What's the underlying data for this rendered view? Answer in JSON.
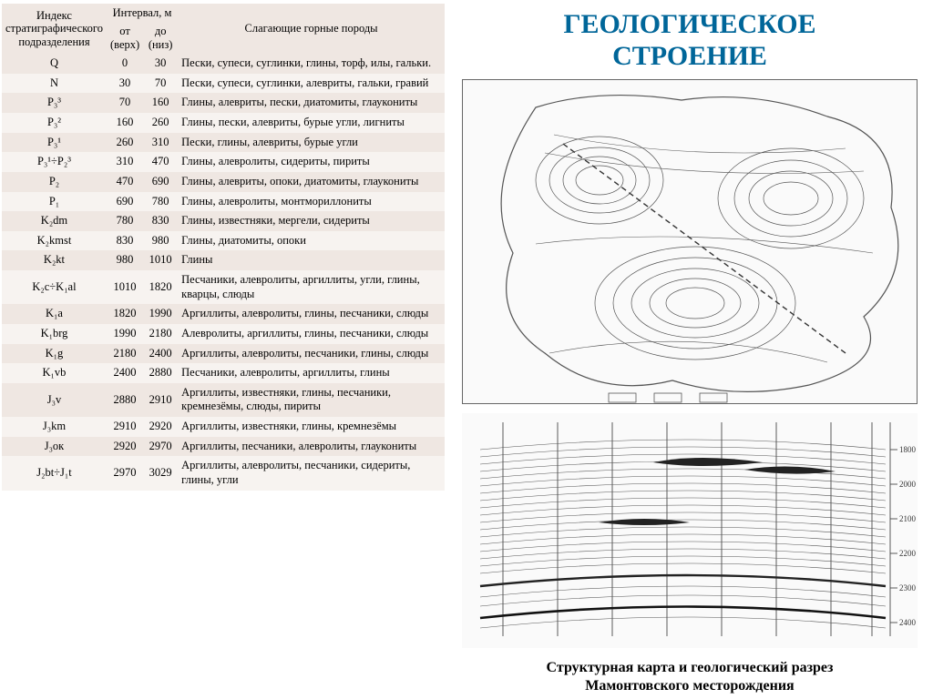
{
  "title_line1": "ГЕОЛОГИЧЕСКОЕ",
  "title_line2": "СТРОЕНИЕ",
  "caption_line1": "Структурная карта и геологический разрез",
  "caption_line2": "Мамонтовского месторождения",
  "table": {
    "headers": {
      "idx": "Индекс стратиграфического подразделения",
      "interval": "Интервал, м",
      "from": "от (верх)",
      "to": "до (низ)",
      "desc": "Слагающие горные породы"
    },
    "rows": [
      {
        "idx": "Q",
        "from": "0",
        "to": "30",
        "desc": "Пески, супеси, суглинки, глины, торф, илы, гальки."
      },
      {
        "idx": "N",
        "from": "30",
        "to": "70",
        "desc": "Пески, супеси, суглинки, алевриты, гальки, гравий"
      },
      {
        "idx": "P₃³",
        "from": "70",
        "to": "160",
        "desc": "Глины, алевриты, пески, диатомиты, глаукониты"
      },
      {
        "idx": "P₃²",
        "from": "160",
        "to": "260",
        "desc": "Глины, пески, алевриты, бурые угли, лигниты"
      },
      {
        "idx": "P₃¹",
        "from": "260",
        "to": "310",
        "desc": "Пески, глины, алевриты, бурые угли"
      },
      {
        "idx": "P₃¹÷P₂³",
        "from": "310",
        "to": "470",
        "desc": "Глины, алевролиты, сидериты, пириты"
      },
      {
        "idx": "P₂",
        "from": "470",
        "to": "690",
        "desc": "Глины, алевриты, опоки, диатомиты, глаукониты"
      },
      {
        "idx": "P₁",
        "from": "690",
        "to": "780",
        "desc": "Глины, алевролиты, монтмориллониты"
      },
      {
        "idx": "K₂dm",
        "from": "780",
        "to": "830",
        "desc": "Глины, известняки, мергели, сидериты"
      },
      {
        "idx": "K₂kmst",
        "from": "830",
        "to": "980",
        "desc": "Глины, диатомиты,   опоки"
      },
      {
        "idx": "K₂kt",
        "from": "980",
        "to": "1010",
        "desc": "Глины"
      },
      {
        "idx": "K₂c÷K₁al",
        "from": "1010",
        "to": "1820",
        "desc": "Песчаники, алевролиты, аргиллиты, угли, глины, кварцы, слюды"
      },
      {
        "idx": "K₁a",
        "from": "1820",
        "to": "1990",
        "desc": "Аргиллиты, алевролиты, глины, песчаники, слюды"
      },
      {
        "idx": "K₁brg",
        "from": "1990",
        "to": "2180",
        "desc": "Алевролиты, аргиллиты, глины, песчаники, слюды"
      },
      {
        "idx": "K₁g",
        "from": "2180",
        "to": "2400",
        "desc": "Аргиллиты, алевролиты, песчаники, глины, слюды"
      },
      {
        "idx": "K₁vb",
        "from": "2400",
        "to": "2880",
        "desc": "Песчаники, алевролиты, аргиллиты, глины"
      },
      {
        "idx": "J₃v",
        "from": "2880",
        "to": "2910",
        "desc": "Аргиллиты, известняки, глины, песчаники, кремнезёмы, слюды, пириты"
      },
      {
        "idx": "J₃km",
        "from": "2910",
        "to": "2920",
        "desc": "Аргиллиты, известняки, глины, кремнезёмы"
      },
      {
        "idx": "J₃ок",
        "from": "2920",
        "to": "2970",
        "desc": "Аргиллиты, песчаники, алевролиты, глаукониты"
      },
      {
        "idx": "J₂bt÷J₁t",
        "from": "2970",
        "to": "3029",
        "desc": "Аргиллиты, алевролиты, песчаники, сидериты, глины, угли"
      }
    ]
  },
  "section": {
    "depth_labels": [
      "1800",
      "2000",
      "2100",
      "2200",
      "2300",
      "2400"
    ]
  },
  "colors": {
    "title": "#006699",
    "table_bg_odd": "#efe7e2",
    "table_bg_even": "#f7f3f0",
    "map_stroke": "#555555",
    "sect_stroke": "#555555"
  }
}
